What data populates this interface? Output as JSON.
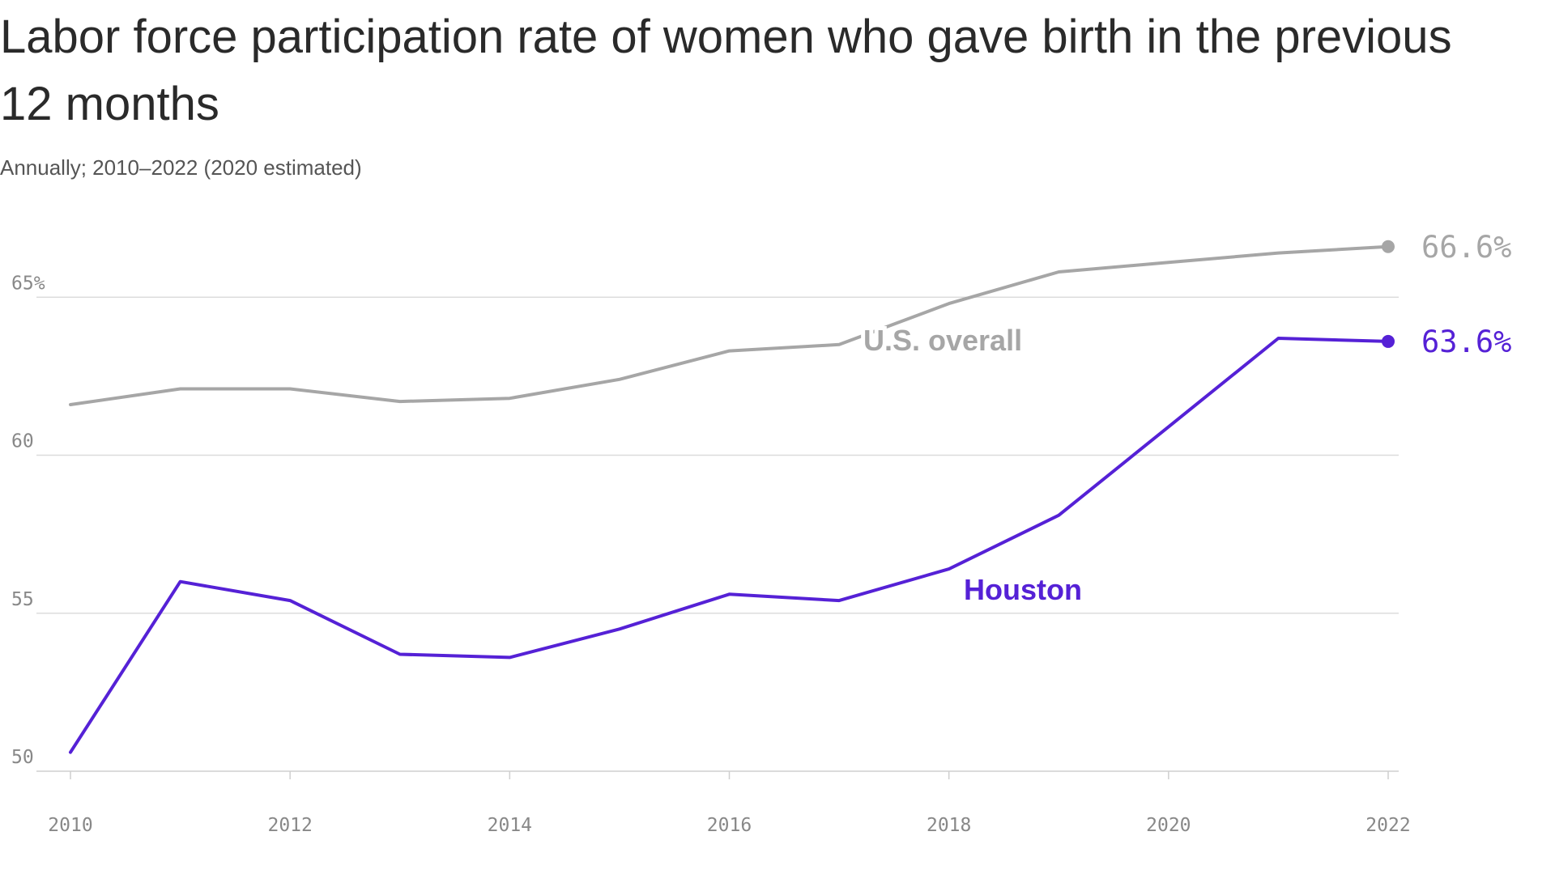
{
  "chart_data": {
    "type": "line",
    "title": "Labor force participation rate of women who gave birth in the previous 12 months",
    "subtitle": "Annually; 2010–2022 (2020 estimated)",
    "x": [
      2010,
      2011,
      2012,
      2013,
      2014,
      2015,
      2016,
      2017,
      2018,
      2019,
      2020,
      2021,
      2022
    ],
    "xticks": [
      2010,
      2012,
      2014,
      2016,
      2018,
      2020,
      2022
    ],
    "yticks": [
      50,
      55,
      60,
      65
    ],
    "ytick_labels": [
      "50",
      "55",
      "60",
      "65%"
    ],
    "xlim": [
      2010,
      2022
    ],
    "ylim": [
      50,
      68
    ],
    "grid": true,
    "series": [
      {
        "name": "U.S. overall",
        "color": "#a6a6a6",
        "values": [
          61.6,
          62.1,
          62.1,
          61.7,
          61.8,
          62.4,
          63.3,
          63.5,
          64.8,
          65.8,
          66.1,
          66.4,
          66.6
        ],
        "end_label": "66.6%"
      },
      {
        "name": "Houston",
        "color": "#5521d6",
        "values": [
          50.6,
          56.0,
          55.4,
          53.7,
          53.6,
          54.5,
          55.6,
          55.4,
          56.4,
          58.1,
          60.9,
          63.7,
          63.6
        ],
        "end_label": "63.6%"
      }
    ]
  }
}
